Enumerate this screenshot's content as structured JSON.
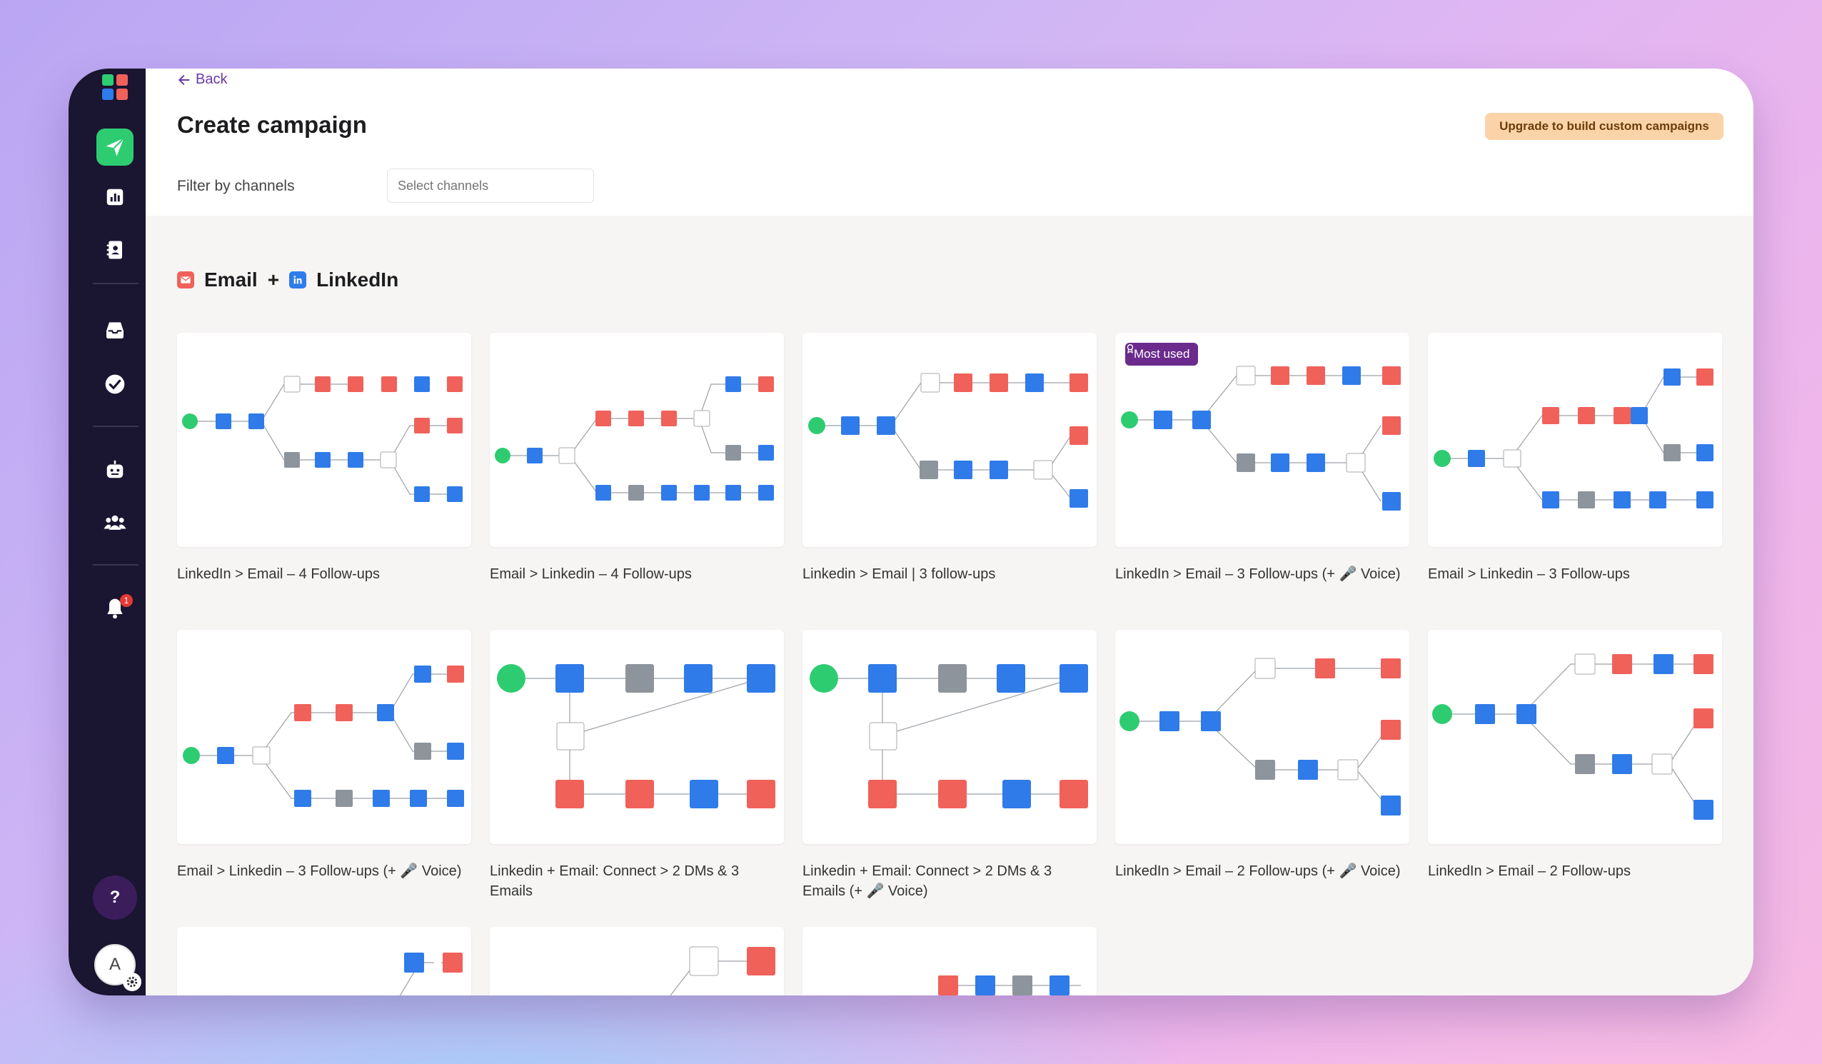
{
  "nav": {
    "back_label": "Back",
    "page_title": "Create campaign",
    "upgrade_label": "Upgrade to build custom campaigns"
  },
  "filter": {
    "label": "Filter by channels",
    "placeholder": "Select channels"
  },
  "section": {
    "channel_a": "Email",
    "plus": "+",
    "channel_b": "LinkedIn"
  },
  "sidebar": {
    "items": [
      "send-icon",
      "chart-icon",
      "contacts-icon",
      "inbox-icon",
      "check-circle-icon",
      "bot-icon",
      "team-icon",
      "bell-icon"
    ],
    "active": "send-icon",
    "notification_count": "1",
    "help_label": "?",
    "avatar_initial": "A"
  },
  "badges": {
    "most_used": "Most used"
  },
  "templates": [
    "LinkedIn > Email – 4 Follow-ups",
    "Email > Linkedin – 4 Follow-ups",
    "Linkedin > Email | 3 follow-ups",
    "LinkedIn > Email – 3 Follow-ups (+ 🎤 Voice)",
    "Email > Linkedin – 3 Follow-ups",
    "Email > Linkedin – 3 Follow-ups (+ 🎤 Voice)",
    "Linkedin + Email: Connect > 2 DMs & 3 Emails",
    "Linkedin + Email: Connect > 2 DMs & 3 Emails (+ 🎤 Voice)",
    "LinkedIn > Email – 2 Follow-ups (+ 🎤 Voice)",
    "LinkedIn > Email – 2 Follow-ups"
  ],
  "colors": {
    "sidebar_bg": "#1a1530",
    "active_green": "#2ecc71",
    "linkedin_blue": "#2f7bea",
    "email_red": "#f0615a",
    "wait_gray": "#8e949c",
    "accent_purple": "#6a3aa8",
    "upgrade_bg": "#fbd3a8"
  }
}
